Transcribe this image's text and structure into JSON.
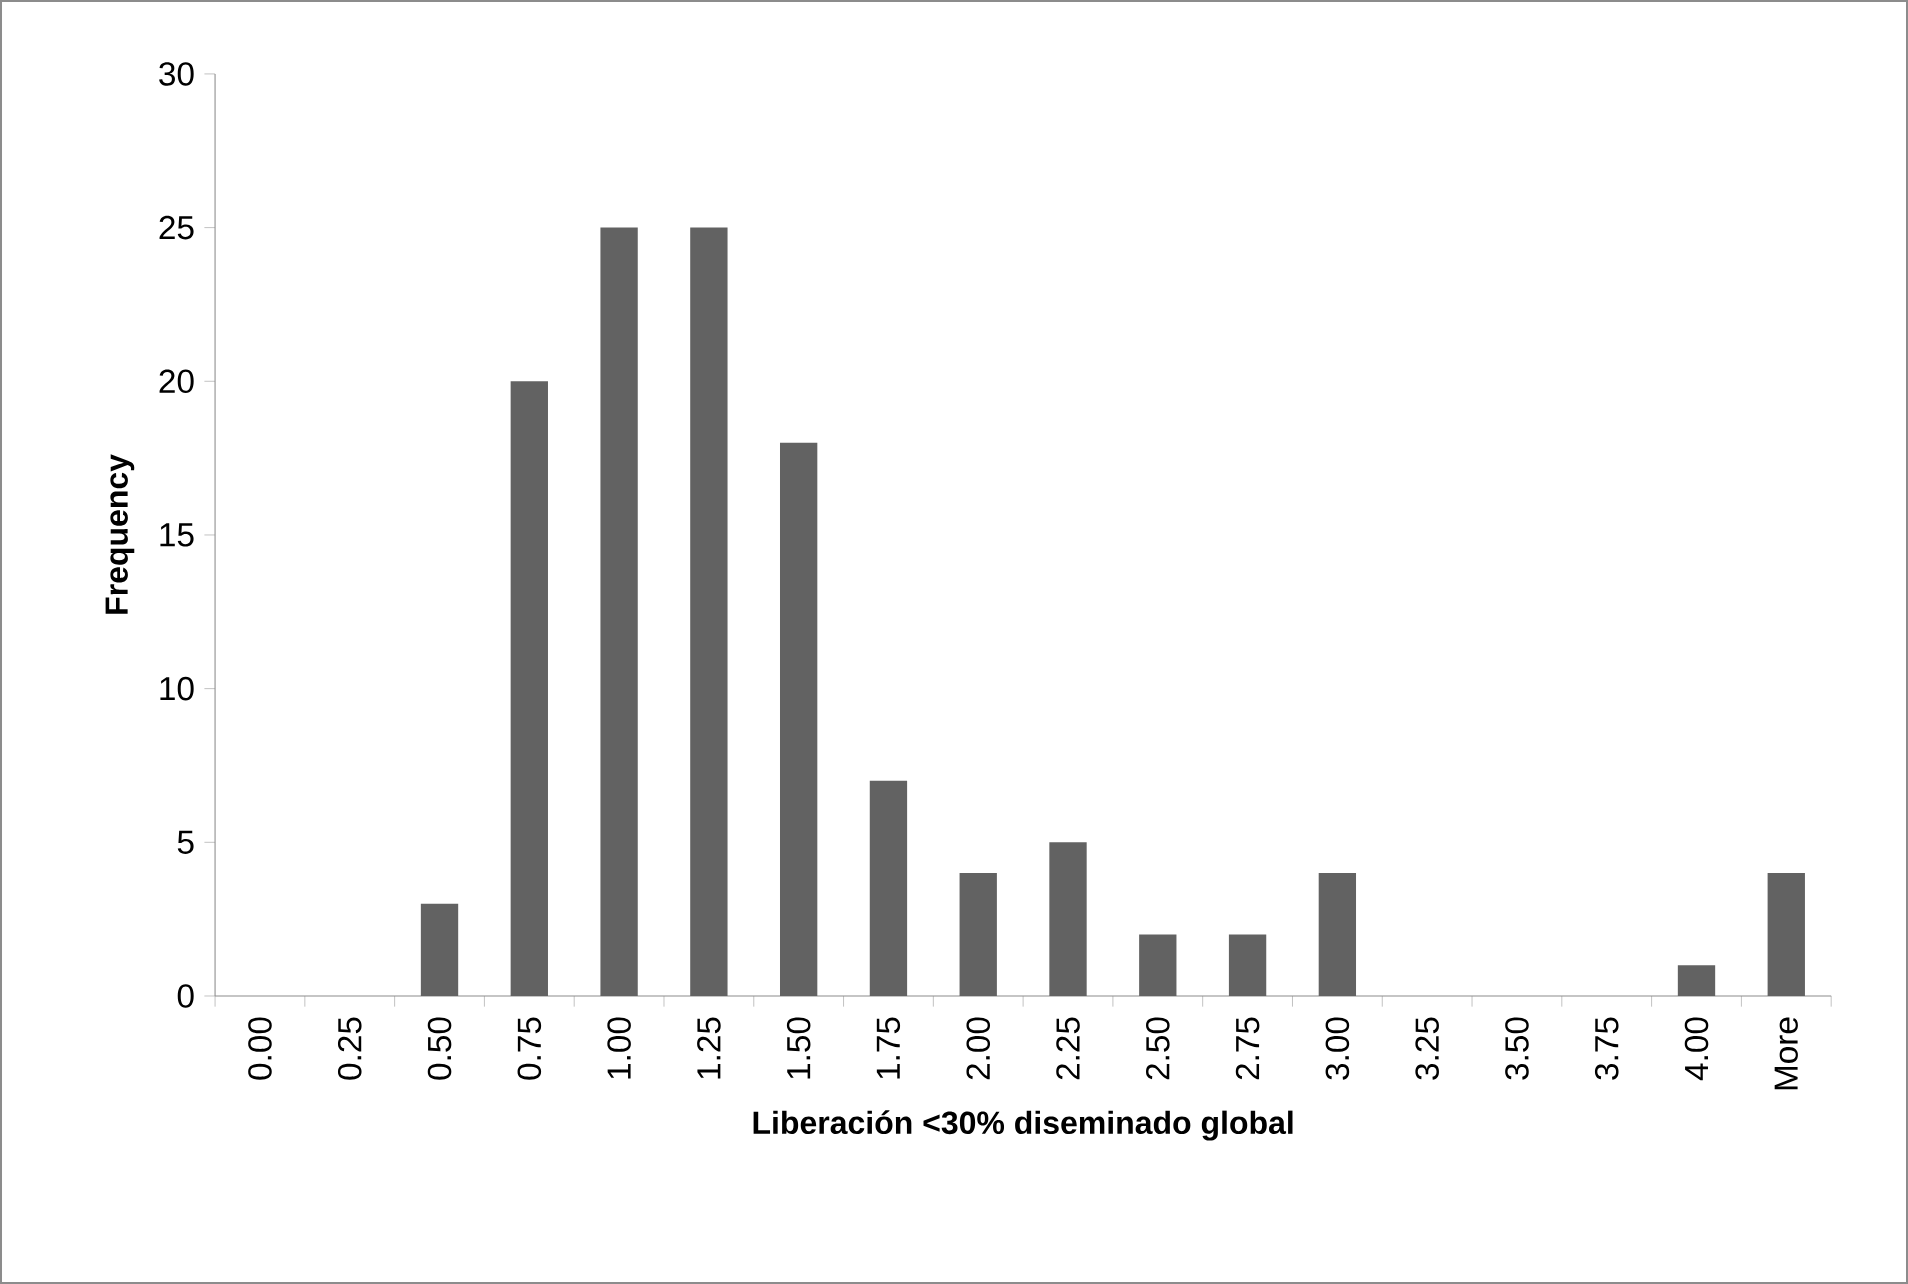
{
  "chart_data": {
    "type": "bar",
    "xlabel": "Liberación <30% diseminado global",
    "ylabel": "Frequency",
    "categories": [
      "0.00",
      "0.25",
      "0.50",
      "0.75",
      "1.00",
      "1.25",
      "1.50",
      "1.75",
      "2.00",
      "2.25",
      "2.50",
      "2.75",
      "3.00",
      "3.25",
      "3.50",
      "3.75",
      "4.00",
      "More"
    ],
    "values": [
      0,
      0,
      3,
      20,
      25,
      25,
      18,
      7,
      4,
      5,
      2,
      2,
      4,
      0,
      0,
      0,
      1,
      4
    ],
    "color": "#626262",
    "ylim": [
      0,
      30
    ],
    "yticks": [
      0,
      5,
      10,
      15,
      20,
      25,
      30
    ]
  }
}
